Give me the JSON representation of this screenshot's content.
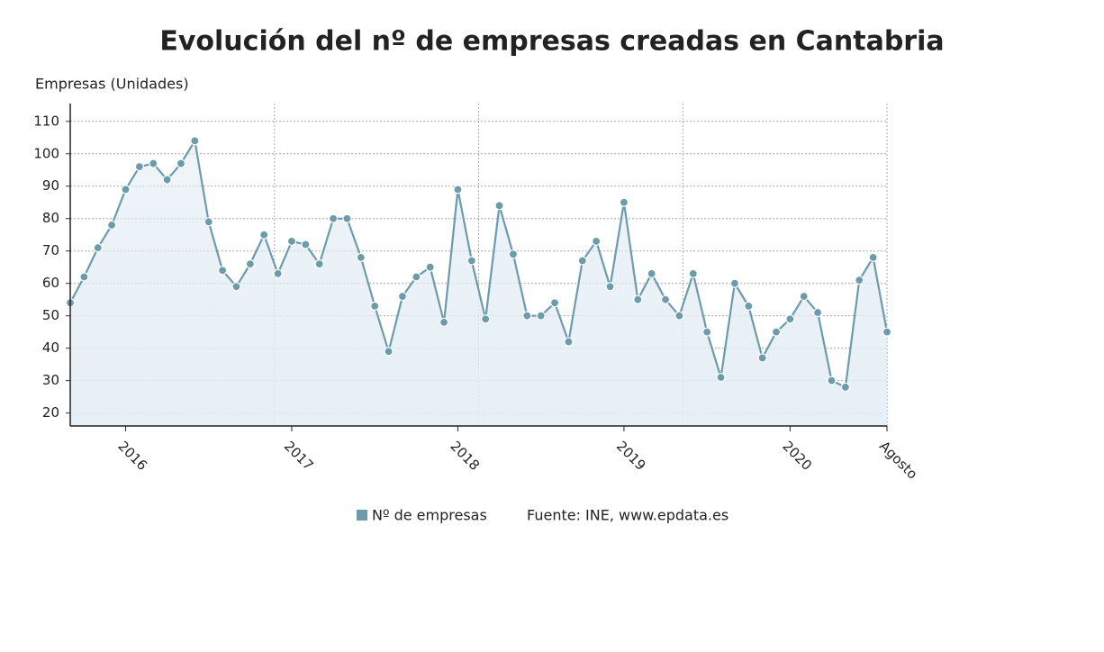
{
  "chart_data": {
    "type": "line",
    "title": "Evolución del nº de empresas creadas en Cantabria",
    "y_label": "Empresas (Unidades)",
    "source": "Fuente: INE, www.epdata.es",
    "categories": [
      null,
      null,
      null,
      null,
      "2016",
      null,
      null,
      null,
      null,
      null,
      null,
      null,
      null,
      null,
      null,
      null,
      "2017",
      null,
      null,
      null,
      null,
      null,
      null,
      null,
      null,
      null,
      null,
      null,
      "2018",
      null,
      null,
      null,
      null,
      null,
      null,
      null,
      null,
      null,
      null,
      null,
      "2019",
      null,
      null,
      null,
      null,
      null,
      null,
      null,
      null,
      null,
      null,
      null,
      "2020",
      null,
      null,
      null,
      null,
      null,
      null,
      "Agosto"
    ],
    "series": [
      {
        "name": "Nº de empresas",
        "color": "#6c9bac",
        "values": [
          54,
          62,
          71,
          78,
          89,
          96,
          97,
          92,
          97,
          104,
          79,
          64,
          59,
          66,
          75,
          63,
          73,
          72,
          66,
          80,
          80,
          68,
          53,
          39,
          56,
          62,
          65,
          48,
          89,
          67,
          49,
          84,
          69,
          50,
          50,
          54,
          42,
          67,
          73,
          59,
          85,
          55,
          63,
          55,
          50,
          63,
          45,
          31,
          60,
          53,
          37,
          45,
          49,
          56,
          51,
          30,
          28,
          61,
          68,
          45
        ]
      }
    ],
    "ylim": [
      16,
      115.5
    ],
    "yticks": [
      20,
      30,
      40,
      50,
      60,
      70,
      80,
      90,
      100,
      110
    ],
    "grid": true
  }
}
